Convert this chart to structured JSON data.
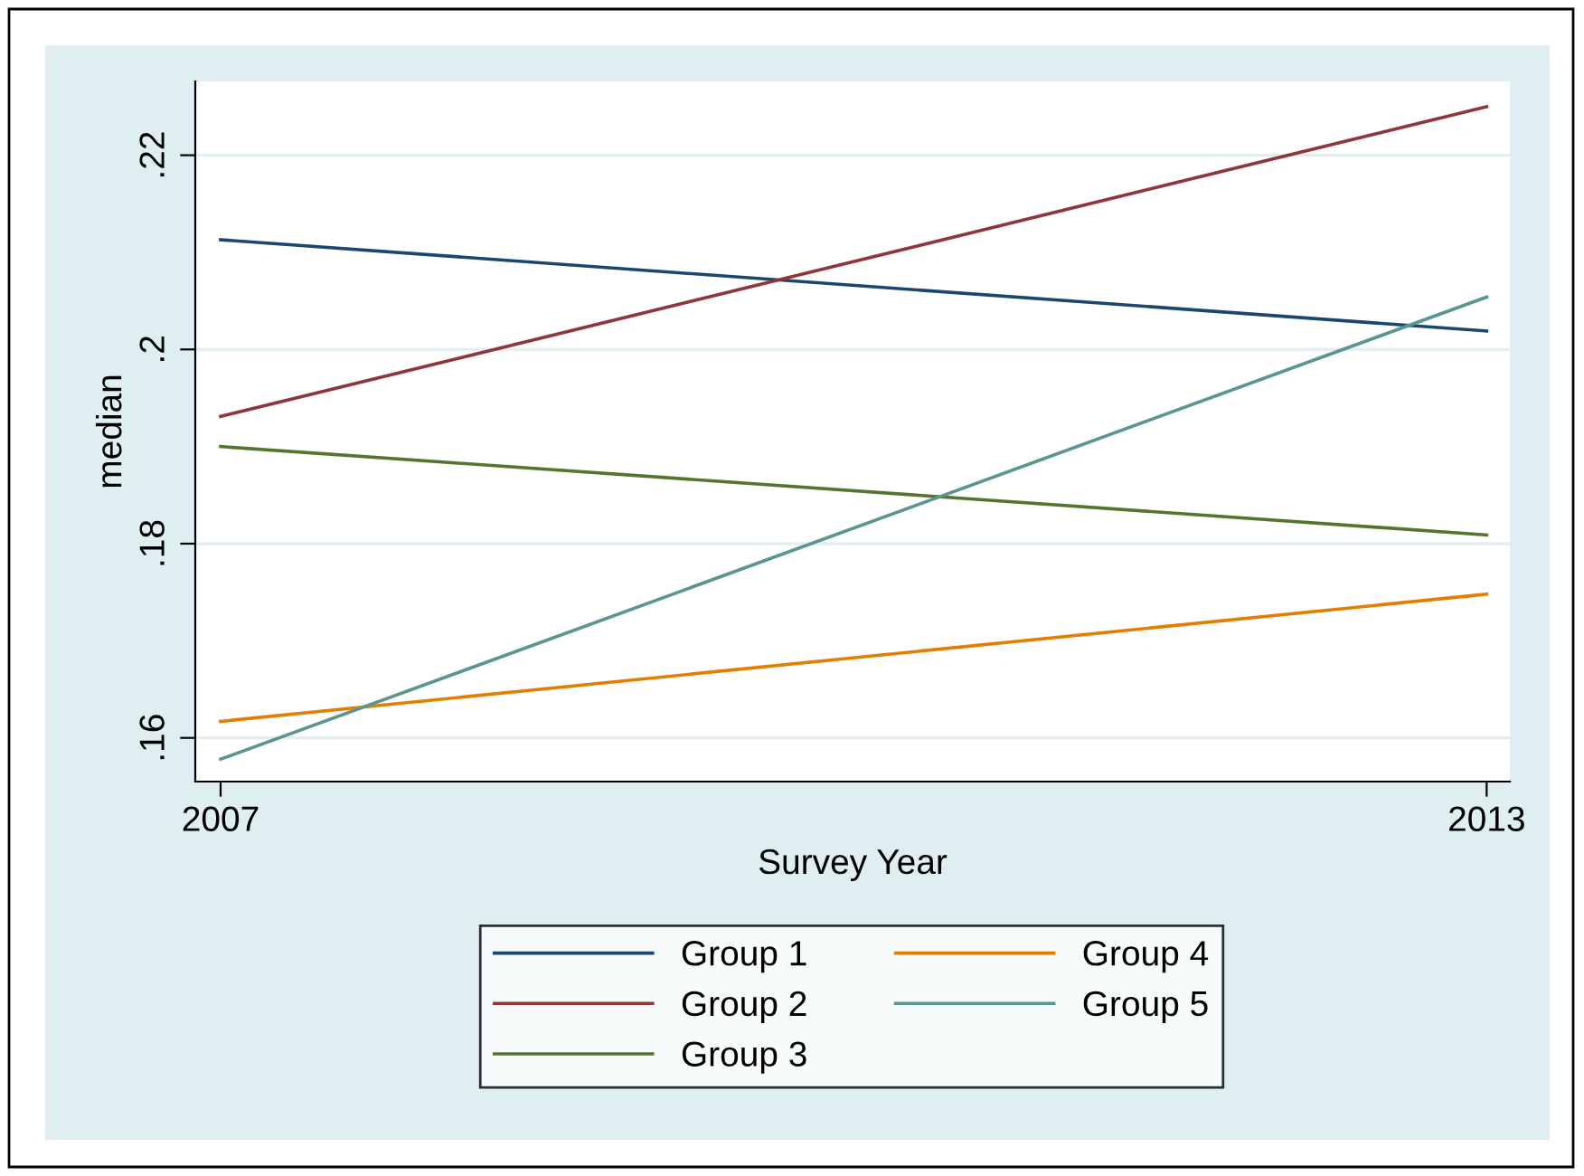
{
  "chart_data": {
    "type": "line",
    "xlabel": "Survey Year",
    "ylabel": "median",
    "x": [
      2007,
      2013
    ],
    "xlim": [
      2006.88,
      2013.11
    ],
    "xticks": [
      2007,
      2013
    ],
    "ylim": [
      0.1555,
      0.2276
    ],
    "yticks": [
      {
        "value": 0.16,
        "label": ".16"
      },
      {
        "value": 0.18,
        "label": ".18"
      },
      {
        "value": 0.2,
        "label": ".2"
      },
      {
        "value": 0.22,
        "label": ".22"
      }
    ],
    "grid": "y",
    "legend": "bottom",
    "marker": "none",
    "line_style": "solid",
    "series": [
      {
        "name": "Group 1",
        "color": "#1a476f",
        "values": [
          0.2113,
          0.2019
        ]
      },
      {
        "name": "Group 2",
        "color": "#90353b",
        "values": [
          0.1931,
          0.225
        ]
      },
      {
        "name": "Group 3",
        "color": "#55752f",
        "values": [
          0.19,
          0.1809
        ]
      },
      {
        "name": "Group 4",
        "color": "#e37e00",
        "values": [
          0.1617,
          0.1748
        ]
      },
      {
        "name": "Group 5",
        "color": "#5a9590",
        "values": [
          0.1578,
          0.2054
        ]
      }
    ]
  }
}
